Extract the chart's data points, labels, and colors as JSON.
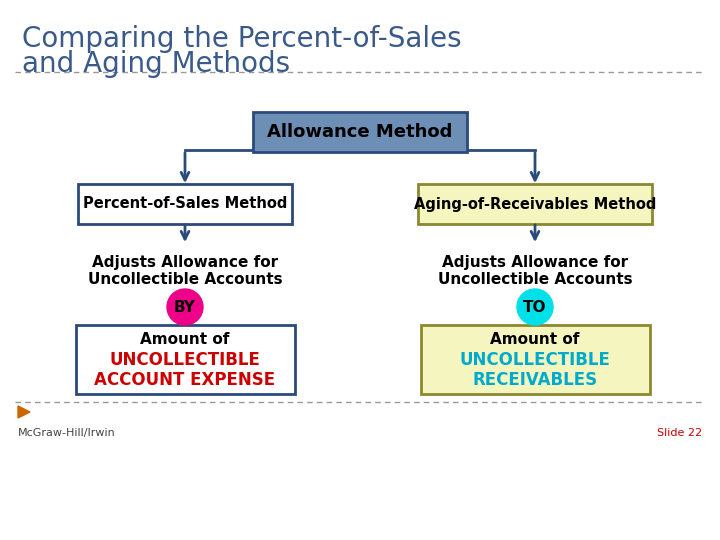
{
  "title_line1": "Comparing the Percent-of-Sales",
  "title_line2": "and Aging Methods",
  "title_color": "#3a5a8a",
  "title_fontsize": 20,
  "bg_color": "#ffffff",
  "top_box_text": "Allowance Method",
  "top_box_bg": "#6e8fb5",
  "top_box_border": "#2a4a7a",
  "left_box1_text": "Percent-of-Sales Method",
  "left_box1_bg": "#ffffff",
  "left_box1_border": "#2a4a7a",
  "right_box1_text": "Aging-of-Receivables Method",
  "right_box1_bg": "#f5f5c0",
  "right_box1_border": "#8a8830",
  "left_text2_line1": "Adjusts Allowance for",
  "left_text2_line2": "Uncollectible Accounts",
  "right_text2_line1": "Adjusts Allowance for",
  "right_text2_line2": "Uncollectible Accounts",
  "left_circle_text": "BY",
  "left_circle_color": "#ee0088",
  "right_circle_text": "TO",
  "right_circle_color": "#00e0e8",
  "left_box2_text_line1": "Amount of",
  "left_box2_text_line2": "UNCOLLECTIBLE",
  "left_box2_text_line3": "ACCOUNT EXPENSE",
  "left_box2_color": "#cc0000",
  "left_box2_bg": "#ffffff",
  "left_box2_border": "#2a4a7a",
  "right_box2_text_line1": "Amount of",
  "right_box2_text_line2": "UNCOLLECTIBLE",
  "right_box2_text_line3": "RECEIVABLES",
  "right_box2_color": "#00aacc",
  "right_box2_bg": "#f5f5c0",
  "right_box2_border": "#8a8830",
  "arrow_color": "#2a4a7a",
  "footer_left": "McGraw-Hill/Irwin",
  "footer_right": "Slide 22",
  "footer_color_left": "#444444",
  "footer_color_right": "#cc0000",
  "divider_color": "#999999",
  "triangle_color": "#cc6600"
}
